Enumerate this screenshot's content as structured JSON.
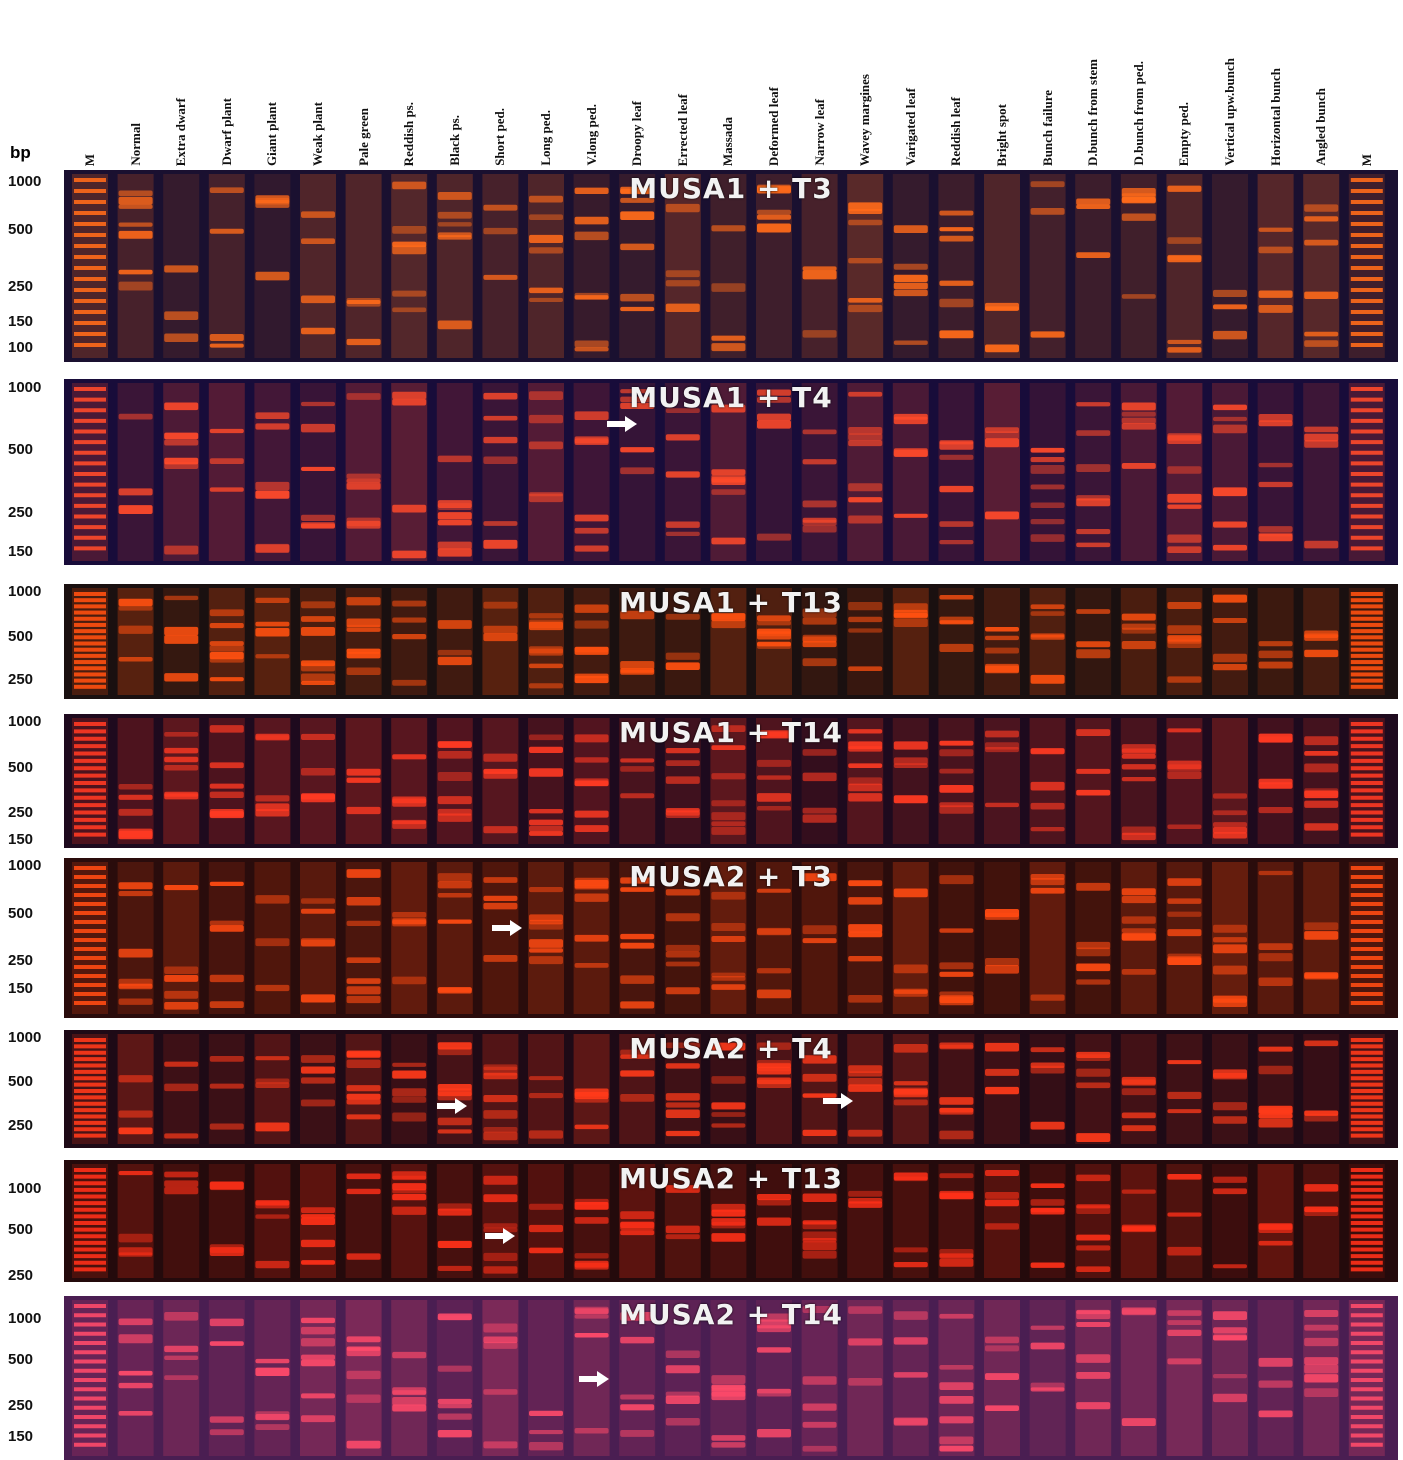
{
  "bp_label": "bp",
  "lanes": [
    "M",
    "Normal",
    "Extra dwarf",
    "Dwarf plant",
    "Giant plant",
    "Weak plant",
    "Pale green",
    "Reddish ps.",
    "Black ps.",
    "Short ped.",
    "Long ped.",
    "V.long ped.",
    "Droopy leaf",
    "Errected leaf",
    "Massada",
    "Deformed leaf",
    "Narrow leaf",
    "Wavey margines",
    "Varigated leaf",
    "Reddish leaf",
    "Bright spot",
    "Bunch failure",
    "D.bunch from stem",
    "D.bunch from ped.",
    "Empty ped.",
    "Vertical upw.bunch",
    "Horizontal bunch",
    "Angled bunch",
    "M"
  ],
  "gels": [
    {
      "title": "MUSA1 + T3",
      "sizes": [
        "1000",
        "500",
        "250",
        "150",
        "100"
      ],
      "bg": "#1a1030",
      "band": "#ff6a1a"
    },
    {
      "title": "MUSA1 + T4",
      "sizes": [
        "1000",
        "500",
        "250",
        "150"
      ],
      "bg": "#180c3a",
      "band": "#ff4a2a"
    },
    {
      "title": "MUSA1 + T13",
      "sizes": [
        "1000",
        "500",
        "250"
      ],
      "bg": "#1a1010",
      "band": "#ff5010"
    },
    {
      "title": "MUSA1 + T14",
      "sizes": [
        "1000",
        "500",
        "250",
        "150"
      ],
      "bg": "#1e0a1e",
      "band": "#ff3a22"
    },
    {
      "title": "MUSA2 + T3",
      "sizes": [
        "1000",
        "500",
        "250",
        "150"
      ],
      "bg": "#2a0c0c",
      "band": "#ff4a12"
    },
    {
      "title": "MUSA2 + T4",
      "sizes": [
        "1000",
        "500",
        "250"
      ],
      "bg": "#1e0a16",
      "band": "#ff3a1a"
    },
    {
      "title": "MUSA2 + T13",
      "sizes": [
        "1000",
        "500",
        "250"
      ],
      "bg": "#240a0c",
      "band": "#ff3018"
    },
    {
      "title": "MUSA2 + T14",
      "sizes": [
        "1000",
        "500",
        "250",
        "150"
      ],
      "bg": "#4a1e52",
      "band": "#ff4a6a"
    }
  ]
}
